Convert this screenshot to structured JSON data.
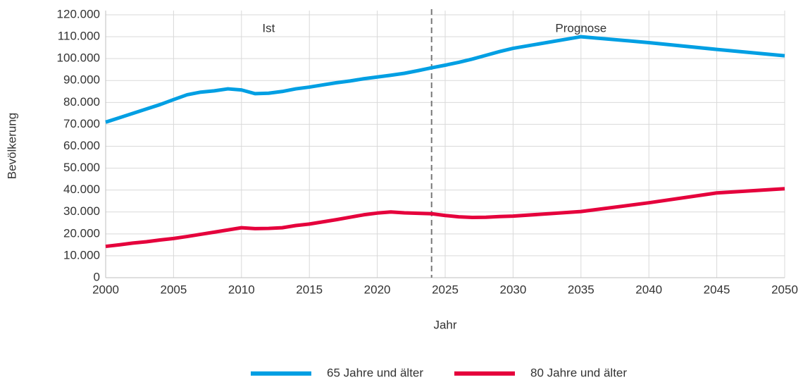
{
  "chart_data": {
    "type": "line",
    "x_label": "Jahr",
    "y_label": "Bevölkerung",
    "annotations": [
      "Ist",
      "Prognose"
    ],
    "divider": 2024,
    "x": [
      2000,
      2001,
      2002,
      2003,
      2004,
      2005,
      2006,
      2007,
      2008,
      2009,
      2010,
      2011,
      2012,
      2013,
      2014,
      2015,
      2016,
      2017,
      2018,
      2019,
      2020,
      2021,
      2022,
      2023,
      2024,
      2025,
      2026,
      2027,
      2028,
      2029,
      2030,
      2035,
      2040,
      2045,
      2050
    ],
    "series": [
      {
        "name": "65 Jahre und älter",
        "color": "#009fe3",
        "values": [
          71000,
          73000,
          75000,
          77000,
          79000,
          81300,
          83500,
          84700,
          85300,
          86200,
          85700,
          84000,
          84200,
          85000,
          86200,
          87000,
          88000,
          89000,
          89800,
          90800,
          91600,
          92400,
          93300,
          94500,
          95800,
          97000,
          98300,
          99800,
          101500,
          103200,
          104700,
          110000,
          107300,
          104200,
          101300
        ]
      },
      {
        "name": "80 Jahre und älter",
        "color": "#e5003c",
        "values": [
          14300,
          15000,
          15800,
          16400,
          17200,
          17900,
          18800,
          19800,
          20800,
          21800,
          22800,
          22400,
          22500,
          22800,
          23800,
          24500,
          25500,
          26500,
          27600,
          28700,
          29500,
          30000,
          29600,
          29400,
          29200,
          28400,
          27800,
          27500,
          27600,
          27900,
          28100,
          30200,
          34200,
          38700,
          40600
        ]
      }
    ],
    "xlim": [
      2000,
      2050
    ],
    "xticks": [
      2000,
      2005,
      2010,
      2015,
      2020,
      2025,
      2030,
      2035,
      2040,
      2045,
      2050
    ],
    "ylim": [
      0,
      120000
    ],
    "yticks": [
      0,
      {
        "value": 10000,
        "label": "10.000"
      },
      {
        "value": 20000,
        "label": "20.000"
      },
      {
        "value": 30000,
        "label": "30.000"
      },
      {
        "value": 40000,
        "label": "40.000"
      },
      {
        "value": 50000,
        "label": "50.000"
      },
      {
        "value": 60000,
        "label": "60.000"
      },
      {
        "value": 70000,
        "label": "70.000"
      },
      {
        "value": 80000,
        "label": "80.000"
      },
      {
        "value": 90000,
        "label": "90.000"
      },
      {
        "value": 100000,
        "label": "100.000"
      },
      {
        "value": 110000,
        "label": "110.000"
      },
      {
        "value": 120000,
        "label": "120.000"
      }
    ],
    "grid": true
  }
}
